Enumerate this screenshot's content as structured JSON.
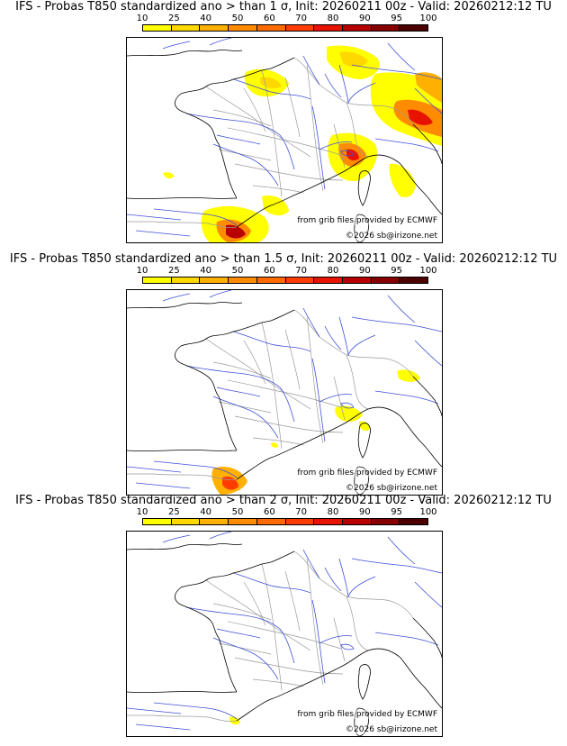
{
  "panels": [
    {
      "title": "IFS - Probas T850  standardized ano > than 1 σ, Init: 20260211 00z - Valid: 20260212:12 TU",
      "source_credit": "from grib files provided by ECMWF",
      "copyright": "©2026 sb@irizone.net"
    },
    {
      "title": "IFS - Probas T850  standardized ano > than 1.5 σ, Init: 20260211 00z - Valid: 20260212:12 TU",
      "source_credit": "from grib files provided by ECMWF",
      "copyright": "©2026 sb@irizone.net"
    },
    {
      "title": "IFS - Probas T850  standardized ano > than 2 σ, Init: 20260211 00z - Valid: 20260212:12 TU",
      "source_credit": "from grib files provided by ECMWF",
      "copyright": "©2026 sb@irizone.net"
    }
  ],
  "colorbar": {
    "labels": [
      "10",
      "25",
      "40",
      "50",
      "60",
      "70",
      "80",
      "90",
      "95",
      "100"
    ],
    "colors": [
      "#ffff00",
      "#ffd800",
      "#ffb000",
      "#ff8c00",
      "#ff6a00",
      "#ff3c00",
      "#e81200",
      "#b80000",
      "#860000",
      "#4c0000"
    ]
  },
  "map_colors": {
    "coast": "#000000",
    "rivers": "#3f4fd9",
    "borders": "#9a9a9a"
  }
}
